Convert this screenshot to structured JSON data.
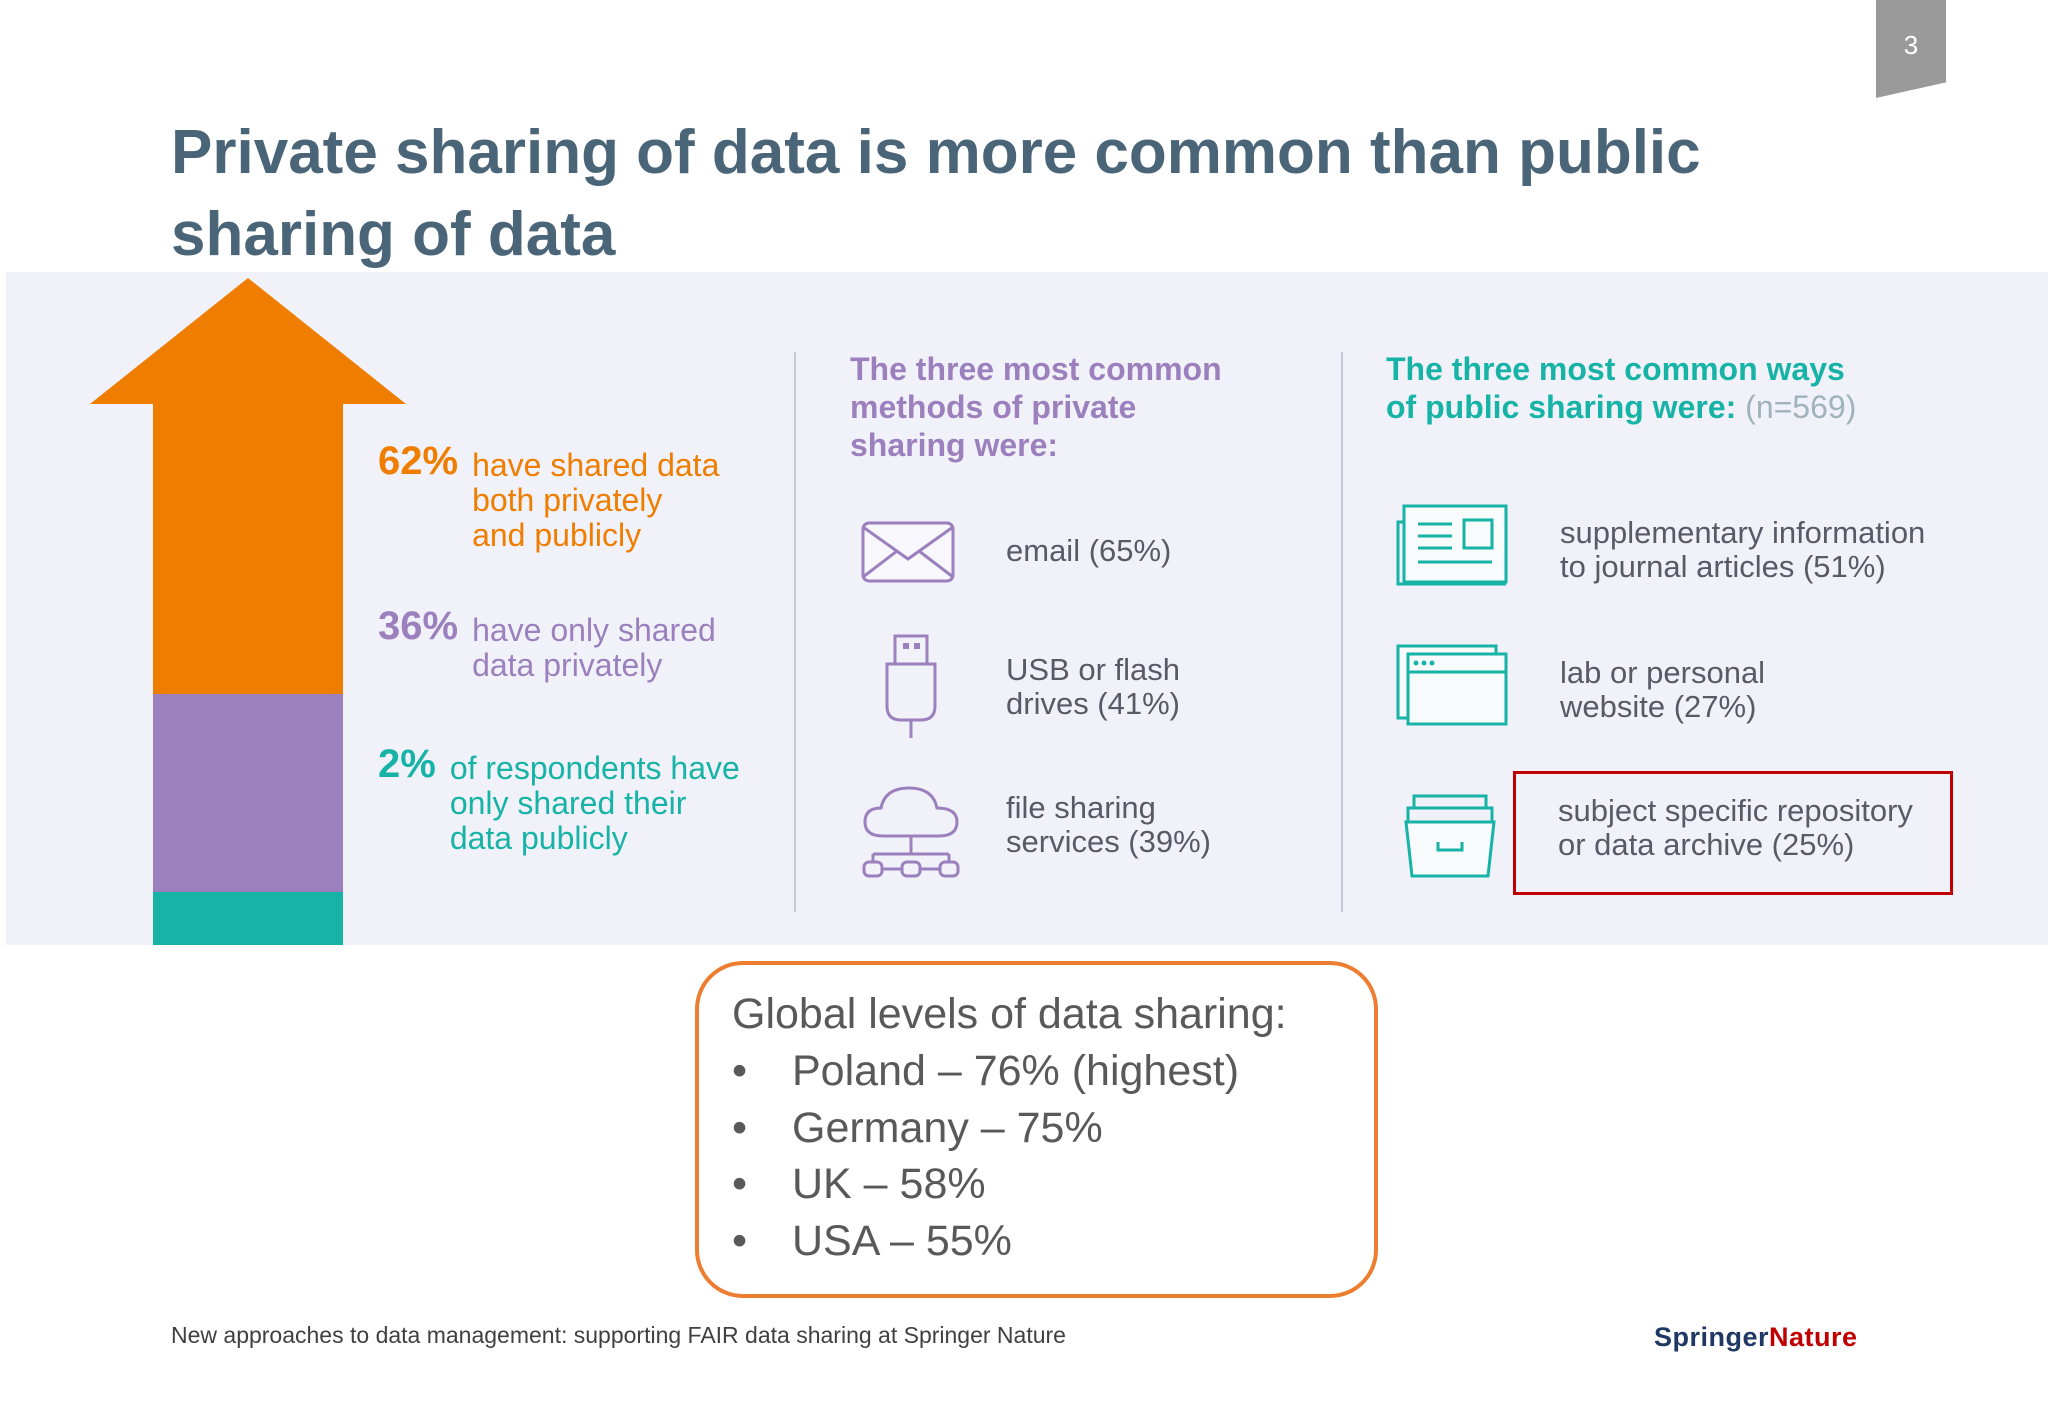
{
  "page_number": "3",
  "title": "Private sharing of data is more common than public sharing of data",
  "infographic": {
    "arrow": {
      "colors": [
        "#ef7d00",
        "#9b80bd",
        "#17b3a7"
      ],
      "shares_percent": [
        62,
        36,
        2
      ]
    },
    "stats": [
      {
        "pct": "62%",
        "text": [
          "have shared data",
          "both privately",
          "and publicly"
        ],
        "color": "#ef7d00"
      },
      {
        "pct": "36%",
        "text": [
          "have only shared",
          "data privately"
        ],
        "color": "#9b80bd"
      },
      {
        "pct": "2%",
        "text": [
          "of respondents have",
          "only shared their",
          "data publicly"
        ],
        "color": "#17b3a7"
      }
    ],
    "private": {
      "heading": [
        "The three most common",
        "methods of private",
        "sharing were:"
      ],
      "items": [
        {
          "icon": "envelope-icon",
          "text": [
            "email (65%)"
          ]
        },
        {
          "icon": "usb-drive-icon",
          "text": [
            "USB or flash",
            "drives (41%)"
          ]
        },
        {
          "icon": "cloud-sharing-icon",
          "text": [
            "file sharing",
            "services (39%)"
          ]
        }
      ]
    },
    "public": {
      "heading_line1": "The three most common ways",
      "heading_line2": "of public sharing were:",
      "n": "(n=569)",
      "items": [
        {
          "icon": "newspaper-icon",
          "text": [
            "supplementary information",
            "to journal articles (51%)"
          ]
        },
        {
          "icon": "browser-window-icon",
          "text": [
            "lab or personal",
            "website (27%)"
          ]
        },
        {
          "icon": "archive-box-icon",
          "text": [
            "subject specific repository",
            "or data archive (25%)"
          ]
        }
      ]
    }
  },
  "callout": {
    "title": "Global levels of data sharing:",
    "items": [
      "Poland – 76% (highest)",
      "Germany – 75%",
      "UK – 58%",
      "USA – 55%"
    ],
    "bullet": "•"
  },
  "footer": "New approaches to data management: supporting FAIR data sharing at Springer Nature",
  "logo": {
    "part1": "Springer",
    "part2": "Nature"
  }
}
